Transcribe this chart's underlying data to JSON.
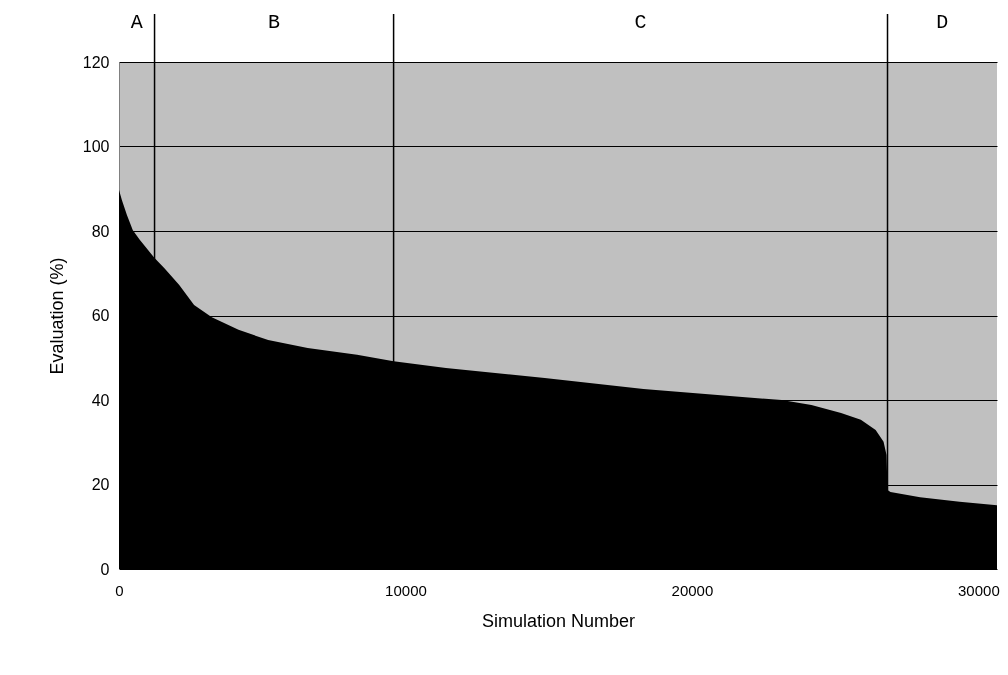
{
  "chart_data": {
    "type": "area",
    "xlabel": "Simulation Number",
    "ylabel": "Evaluation (%)",
    "x": [
      0,
      103,
      276,
      483,
      724,
      1241,
      1586,
      2103,
      2621,
      3241,
      4172,
      5207,
      6586,
      8310,
      9586,
      11414,
      14862,
      18310,
      21759,
      23138,
      24172,
      25207,
      25897,
      26414,
      26690,
      26793,
      26828,
      26931,
      27966,
      29345,
      30650
    ],
    "series": [
      {
        "color": "#000000",
        "values": [
          89.7,
          87.3,
          83.8,
          80.2,
          77.9,
          73.6,
          71.2,
          67.2,
          62.5,
          59.6,
          56.6,
          54.2,
          52.3,
          50.7,
          49.2,
          47.6,
          45.2,
          42.6,
          40.7,
          40.0,
          38.8,
          36.9,
          35.3,
          32.9,
          30.1,
          27.0,
          18.7,
          18.2,
          17.0,
          15.9,
          15.1
        ]
      }
    ],
    "xlim": [
      0,
      30650
    ],
    "ylim": [
      0,
      120
    ],
    "xticks": [
      0,
      10000,
      20000,
      30000
    ],
    "yticks": [
      0,
      20,
      40,
      60,
      80,
      100,
      120
    ],
    "grid": "y",
    "ref_lines": [
      {
        "axis": "x",
        "value": 1241
      },
      {
        "axis": "x",
        "value": 9586
      },
      {
        "axis": "x",
        "value": 26828
      }
    ],
    "annotations": [
      "A",
      "B",
      "C",
      "D"
    ]
  }
}
